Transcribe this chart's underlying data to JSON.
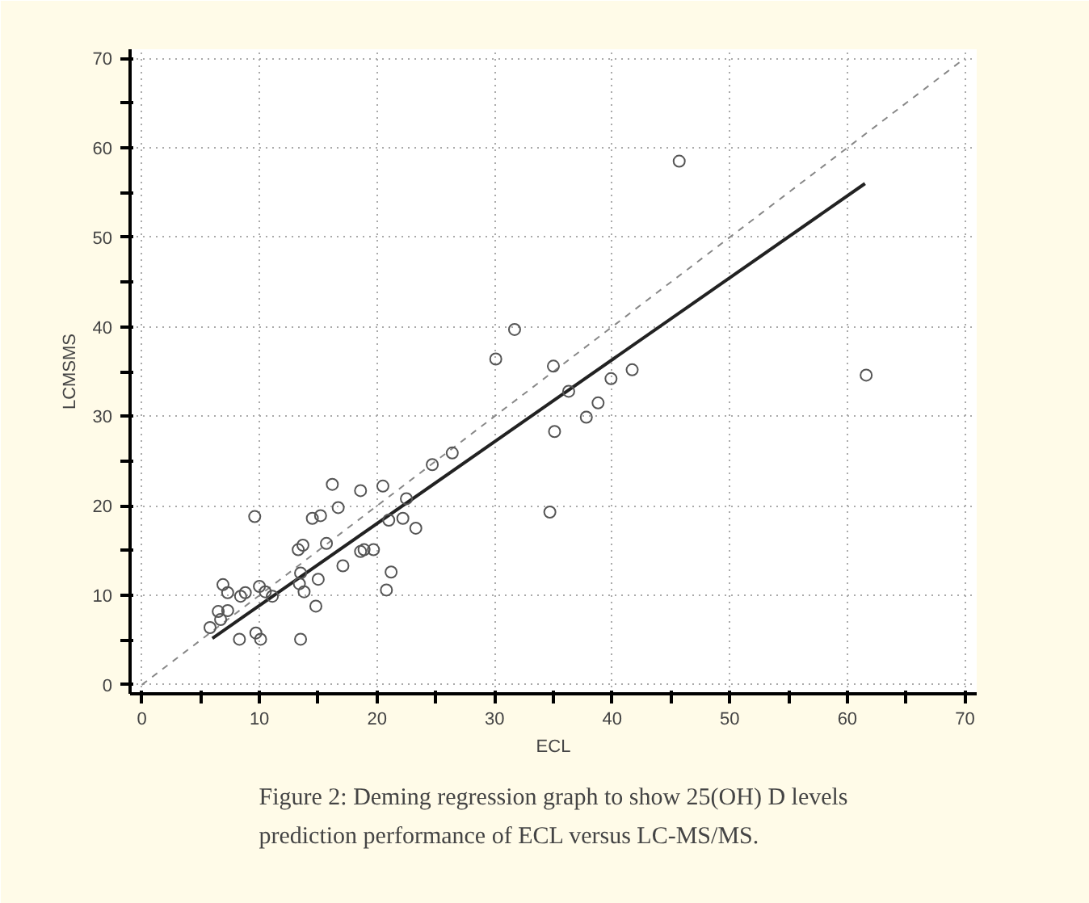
{
  "chart_data": {
    "type": "scatter",
    "xlabel": "ECL",
    "ylabel": "LCMSMS",
    "annotations": [
      "Figure 2: Deming regression graph to show 25(OH) D levels prediction performance of ECL versus LC-MS/MS."
    ],
    "xlim": [
      -1,
      71
    ],
    "ylim": [
      -1,
      71
    ],
    "xticks": [
      0,
      {
        "value": 5,
        "label": null
      },
      10,
      {
        "value": 15,
        "label": null
      },
      20,
      {
        "value": 25,
        "label": null
      },
      30,
      {
        "value": 35,
        "label": null
      },
      40,
      {
        "value": 45,
        "label": null
      },
      50,
      {
        "value": 55,
        "label": null
      },
      60,
      {
        "value": 65,
        "label": null
      },
      70
    ],
    "yticks": [
      0,
      {
        "value": 5,
        "label": null
      },
      10,
      {
        "value": 15,
        "label": null
      },
      20,
      {
        "value": 25,
        "label": null
      },
      30,
      {
        "value": 35,
        "label": null
      },
      40,
      {
        "value": 45,
        "label": null
      },
      50,
      {
        "value": 55,
        "label": null
      },
      60,
      {
        "value": 65,
        "label": null
      },
      70
    ],
    "grid": true,
    "series": [
      {
        "type": "line",
        "color": "#888888",
        "line_style": "dashed",
        "marker": "none",
        "x": [
          0,
          70
        ],
        "values": [
          0,
          70
        ]
      },
      {
        "type": "line",
        "color": "#222222",
        "line_style": "solid",
        "marker": "none",
        "x": [
          6,
          61.5
        ],
        "values": [
          5.2,
          56
        ]
      },
      {
        "color": "#555555",
        "marker": "circle",
        "x": [
          5.8,
          6.5,
          6.9,
          7.3,
          7.3,
          6.7,
          8.4,
          8.8,
          8.3,
          9.6,
          9.7,
          10.0,
          10.1,
          10.5,
          11.1,
          13.3,
          13.7,
          13.5,
          13.4,
          13.8,
          13.5,
          14.5,
          15.2,
          15.0,
          14.8,
          15.7,
          16.2,
          16.7,
          17.1,
          18.6,
          18.6,
          18.9,
          19.7,
          20.5,
          20.8,
          21.0,
          21.2,
          22.2,
          22.5,
          23.3,
          24.7,
          26.4,
          30.1,
          31.7,
          35.0,
          36.3,
          39.9,
          41.7,
          38.8,
          45.7,
          61.6,
          35.1,
          37.8,
          34.7
        ],
        "values": [
          6.4,
          8.2,
          11.2,
          10.3,
          8.3,
          7.3,
          9.9,
          10.3,
          5.1,
          18.8,
          5.8,
          11.0,
          5.1,
          10.4,
          9.9,
          15.1,
          15.6,
          12.5,
          11.3,
          10.4,
          5.1,
          18.6,
          18.9,
          11.8,
          8.8,
          15.8,
          22.4,
          19.8,
          13.3,
          21.7,
          14.9,
          15.1,
          15.1,
          22.2,
          10.6,
          18.4,
          12.6,
          18.6,
          20.8,
          17.5,
          24.6,
          25.9,
          36.4,
          39.7,
          35.6,
          32.8,
          34.2,
          35.2,
          31.5,
          58.5,
          34.6,
          28.3,
          29.9,
          19.3
        ]
      }
    ]
  }
}
